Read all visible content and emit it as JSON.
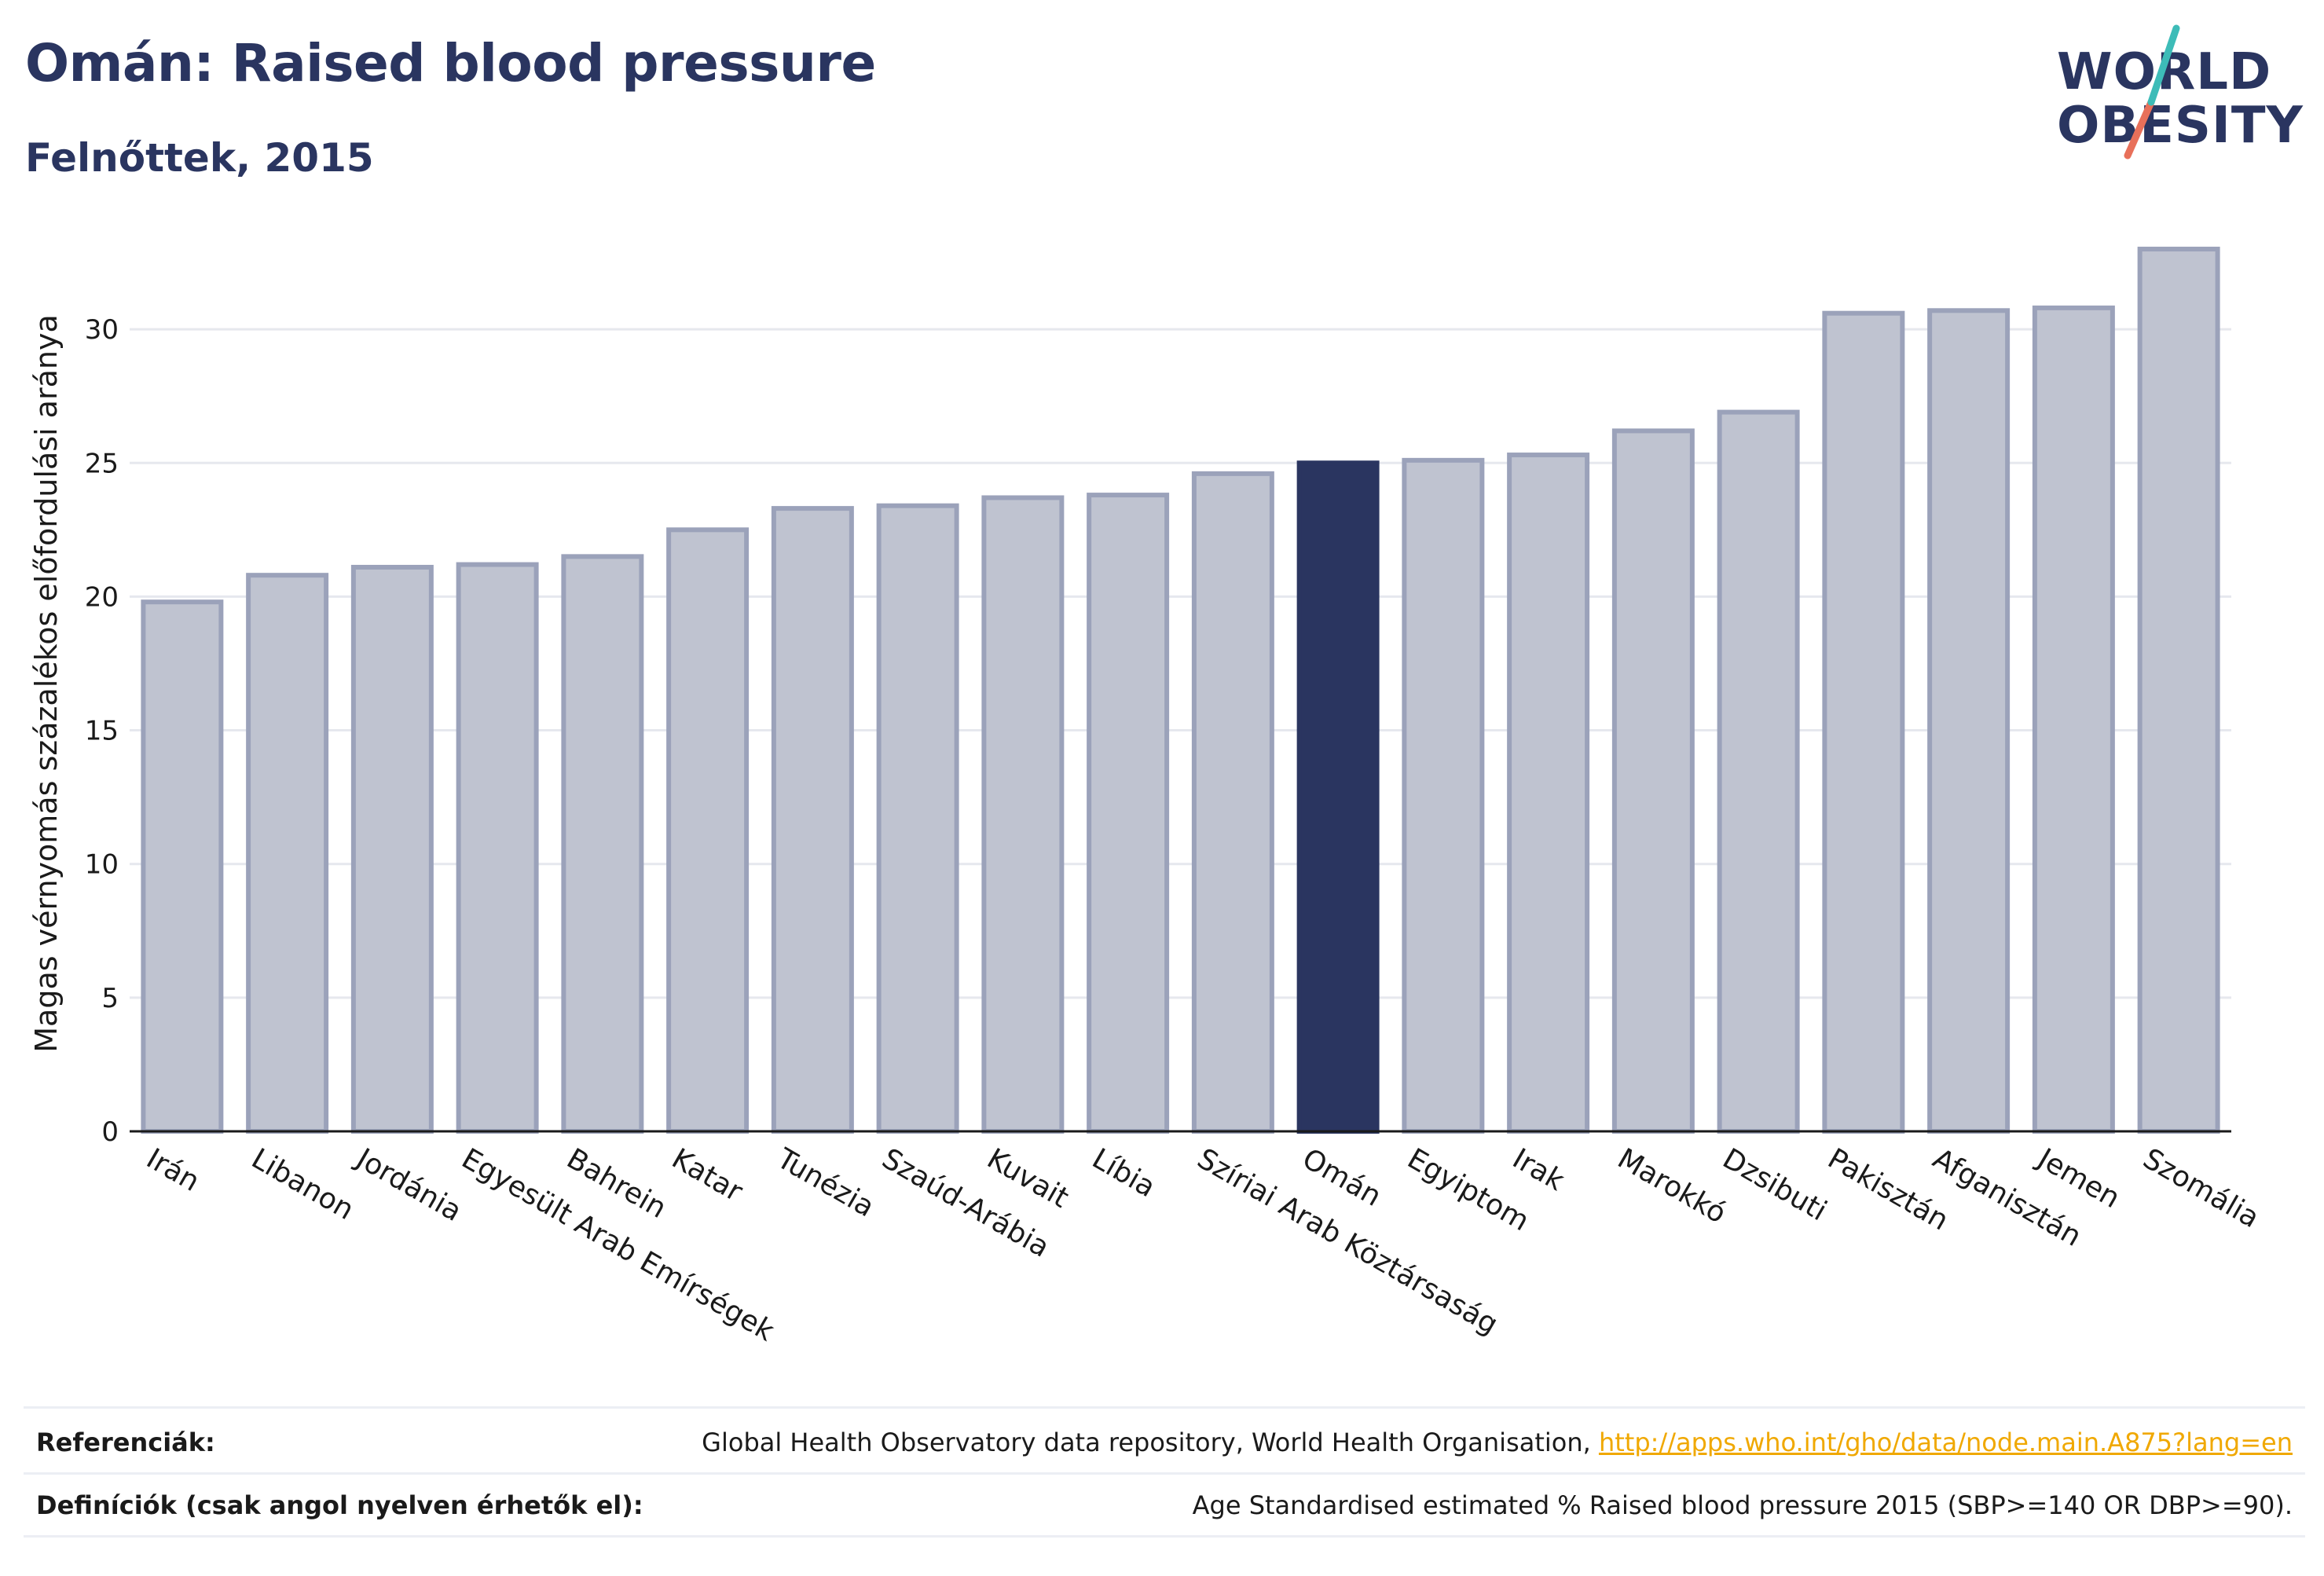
{
  "header": {
    "title": "Omán: Raised blood pressure",
    "subtitle": "Felnőttek, 2015"
  },
  "logo": {
    "line1": "WORLD",
    "line2": "OBESITY",
    "slash_colors": [
      "#3dbcb8",
      "#e8705a"
    ]
  },
  "colors": {
    "highlight": "#2a3560",
    "bar": "#bfc3d0",
    "bar_outline": "#9ba2ba",
    "grid": "#e6e8ee",
    "axis": "#1a1a1a"
  },
  "chart_data": {
    "type": "bar",
    "title": "Omán: Raised blood pressure",
    "ylabel": "Magas vérnyomás százalékos előfordulási aránya",
    "xlabel": "",
    "ylim": [
      0,
      33.5
    ],
    "yticks": [
      0,
      5,
      10,
      15,
      20,
      25,
      30
    ],
    "grid": true,
    "highlight": "Omán",
    "categories": [
      "Irán",
      "Libanon",
      "Jordánia",
      "Egyesült Arab Emírségek",
      "Bahrein",
      "Katar",
      "Tunézia",
      "Szaúd-Arábia",
      "Kuvait",
      "Líbia",
      "Szíriai Arab Köztársaság",
      "Omán",
      "Egyiptom",
      "Irak",
      "Marokkó",
      "Dzsibuti",
      "Pakisztán",
      "Afganisztán",
      "Jemen",
      "Szomália"
    ],
    "values": [
      19.8,
      20.8,
      21.1,
      21.2,
      21.5,
      22.5,
      23.3,
      23.4,
      23.7,
      23.8,
      24.6,
      25.0,
      25.1,
      25.3,
      26.2,
      26.9,
      30.6,
      30.7,
      30.8,
      33.0
    ]
  },
  "footer": {
    "references_label": "Referenciák:",
    "references_text": "Global Health Observatory data repository, World Health Organisation, ",
    "references_link": "http://apps.who.int/gho/data/node.main.A875?lang=en",
    "definitions_label": "Definíciók (csak angol nyelven érhetők el):",
    "definitions_text": "Age Standardised estimated % Raised blood pressure 2015 (SBP>=140 OR DBP>=90)."
  }
}
